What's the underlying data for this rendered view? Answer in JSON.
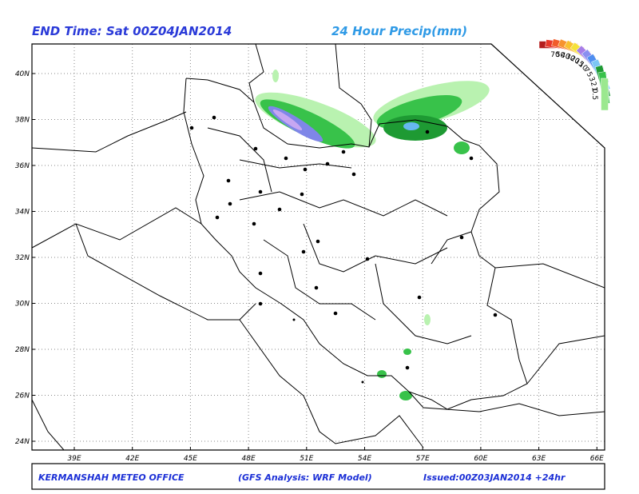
{
  "header": {
    "left": "END Time: Sat 00Z04JAN2014",
    "right": "24 Hour Precip(mm)"
  },
  "axes": {
    "lat_labels": [
      "40N",
      "38N",
      "36N",
      "34N",
      "32N",
      "30N",
      "28N",
      "26N",
      "24N"
    ],
    "lon_labels": [
      "39E",
      "42E",
      "45E",
      "48E",
      "51E",
      "54E",
      "57E",
      "60E",
      "63E",
      "66E"
    ]
  },
  "legend": {
    "labels": [
      "70",
      "50",
      "40",
      "30",
      "20",
      "15",
      "10",
      "7",
      "5",
      "3",
      "2",
      "1",
      "0.5"
    ]
  },
  "footer": {
    "left": "KERMANSHAH METEO OFFICE",
    "center": "(GFS Analysis: WRF Model)",
    "right": "Issued:00Z03JAN2014 +24hr"
  }
}
